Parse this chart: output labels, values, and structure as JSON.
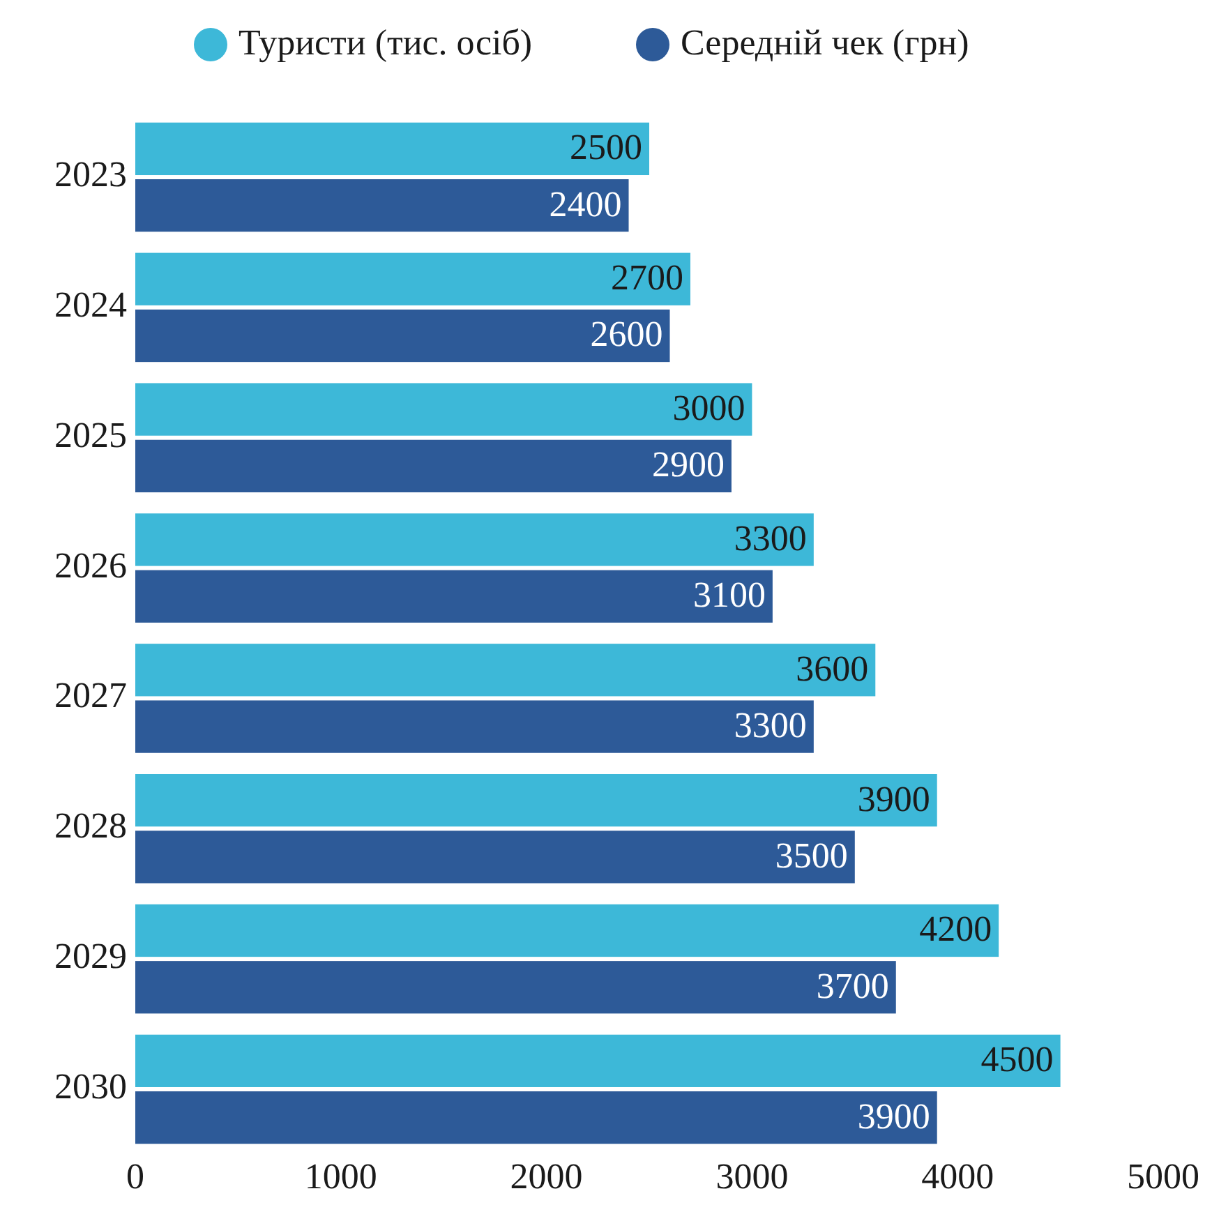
{
  "chart_data": {
    "type": "bar",
    "orientation": "horizontal",
    "categories": [
      "2023",
      "2024",
      "2025",
      "2026",
      "2027",
      "2028",
      "2029",
      "2030"
    ],
    "series": [
      {
        "name": "Туристи (тис. осіб)",
        "color": "#3db8d8",
        "values": [
          2500,
          2700,
          3000,
          3300,
          3600,
          3900,
          4200,
          4500
        ]
      },
      {
        "name": "Середній чек (грн)",
        "color": "#2d5a98",
        "values": [
          2400,
          2600,
          2900,
          3100,
          3300,
          3500,
          3700,
          3900
        ]
      }
    ],
    "xlim": [
      0,
      5000
    ],
    "xticks": [
      0,
      1000,
      2000,
      3000,
      4000,
      5000
    ],
    "data_labels": true,
    "legend": "top",
    "grid": false
  }
}
